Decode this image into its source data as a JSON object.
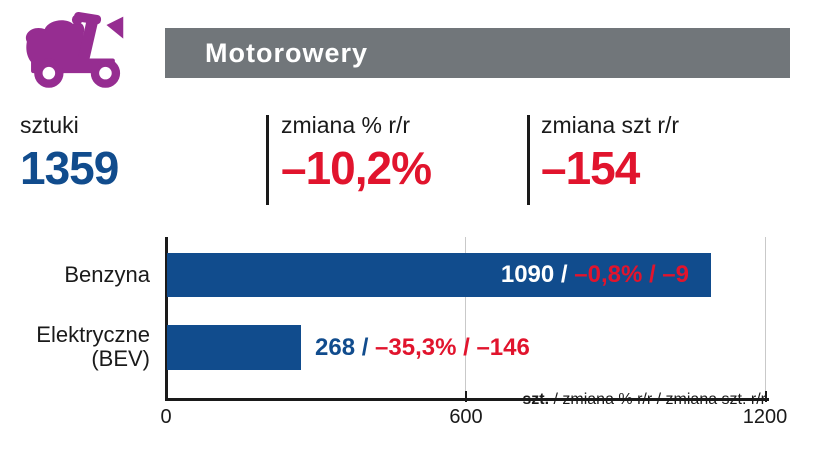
{
  "header": {
    "title": "Motorowery",
    "icon": "scooter-icon"
  },
  "summary": {
    "units": {
      "label": "sztuki",
      "value": "1359"
    },
    "pct_change": {
      "label": "zmiana % r/r",
      "value": "–10,2%"
    },
    "unit_change": {
      "label": "zmiana szt r/r",
      "value": "–154"
    }
  },
  "chart_data": {
    "type": "bar",
    "orientation": "horizontal",
    "xlim": [
      0,
      1200
    ],
    "xticks": [
      "0",
      "600",
      "1200"
    ],
    "grid": "vertical lines at 600 and 1200",
    "legend_note": {
      "bold": "szt.",
      "rest": " / zmiana % r/r / zmiana szt. r/r"
    },
    "bars": [
      {
        "category": "Benzyna",
        "value": 1090,
        "pct_change": "–0,8%",
        "unit_change": "–9",
        "value_text": "1090 / ",
        "change_text": "–0,8% / –9",
        "label_placement": "inside"
      },
      {
        "category": "Elektryczne\n(BEV)",
        "value": 268,
        "pct_change": "–35,3%",
        "unit_change": "–146",
        "value_text": "268 / ",
        "change_text": "–35,3% / –146",
        "label_placement": "outside"
      }
    ]
  },
  "colors": {
    "brand_purple": "#962D91",
    "header_gray": "#71767A",
    "bar_blue": "#114C8D",
    "negative_red": "#E1142D",
    "grid_gray": "#C9C9C9",
    "text_black": "#1A1A1A"
  }
}
